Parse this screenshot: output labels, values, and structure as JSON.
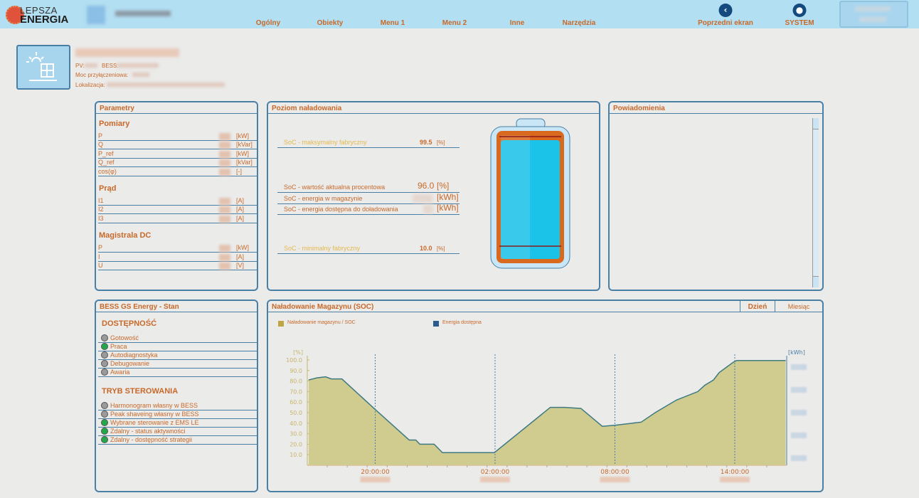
{
  "header": {
    "logo_top": "LEPSZA",
    "logo_bottom": "ENERGIA",
    "nav": [
      "Ogólny",
      "Obiekty",
      "Menu 1",
      "Menu 2",
      "Inne",
      "Narzędzia"
    ],
    "back_label": "Poprzedni ekran",
    "system_label": "SYSTEM",
    "back_icon": "chevron-left-circle",
    "system_icon": "user-circle"
  },
  "site": {
    "pv_label": "PV:",
    "bess_label": "BESS:",
    "power_label": "Moc przyłączeniowa:",
    "location_label": "Lokalizacja:"
  },
  "params": {
    "title": "Parametry",
    "pomiary": {
      "title": "Pomiary",
      "rows": [
        {
          "label": "P",
          "unit": "[kW]"
        },
        {
          "label": "Q",
          "unit": "[kVar]"
        },
        {
          "label": "P_ref",
          "unit": "[kW]"
        },
        {
          "label": "Q_ref",
          "unit": "[kVar]"
        },
        {
          "label": "cos(φ)",
          "unit": "[-]"
        }
      ]
    },
    "prad": {
      "title": "Prąd",
      "rows": [
        {
          "label": "I1",
          "unit": "[A]"
        },
        {
          "label": "I2",
          "unit": "[A]"
        },
        {
          "label": "I3",
          "unit": "[A]"
        }
      ]
    },
    "dc": {
      "title": "Magistrala DC",
      "rows": [
        {
          "label": "P",
          "unit": "[kW]"
        },
        {
          "label": "I",
          "unit": "[A]"
        },
        {
          "label": "U",
          "unit": "[V]"
        }
      ]
    }
  },
  "charge": {
    "title": "Poziom naładowania",
    "max_label": "SoC - maksymalny fabryczny",
    "max_value": "99.5",
    "max_unit": "[%]",
    "cur_label": "SoC - wartość aktualna procentowa",
    "cur_value": "96.0",
    "cur_unit": "[%]",
    "energy_label": "SoC - energia w magazynie",
    "energy_unit": "[kWh]",
    "avail_label": "SoC - energia dostępna do doładowania",
    "avail_unit": "[kWh]",
    "min_label": "SoC - minimalny fabryczny",
    "min_value": "10.0",
    "min_unit": "[%]",
    "battery_level_percent": 96.0
  },
  "notifications": {
    "title": "Powiadomienia"
  },
  "status": {
    "title": "BESS GS Energy - Stan",
    "availability": {
      "title": "DOSTĘPNOŚĆ",
      "items": [
        {
          "label": "Gotowość",
          "state": "off"
        },
        {
          "label": "Praca",
          "state": "on"
        },
        {
          "label": "Autodiagnostyka",
          "state": "off"
        },
        {
          "label": "Debugowanie",
          "state": "off"
        },
        {
          "label": "Awaria",
          "state": "off"
        }
      ]
    },
    "mode": {
      "title": "TRYB STEROWANIA",
      "items": [
        {
          "label": "Harmonogram własny w BESS",
          "state": "off"
        },
        {
          "label": "Peak shaveing własny w BESS",
          "state": "off"
        },
        {
          "label": "Wybrane sterowanie z EMS LE",
          "state": "on"
        },
        {
          "label": "Zdalny - status aktywności",
          "state": "on"
        },
        {
          "label": "Zdalny - dostępność strategii",
          "state": "on"
        }
      ]
    },
    "colors": {
      "on": "#22a84a",
      "off": "#9a9a9a"
    }
  },
  "soc_chart": {
    "title": "Naładowanie Magazynu (SOC)",
    "tab_day": "Dzień",
    "tab_month": "Miesiąc",
    "active_tab": "Dzień"
  },
  "chart_data": {
    "type": "area",
    "series": [
      {
        "name": "Naładowanie magazynu / SOC",
        "color": "#c0a640",
        "points": [
          [
            "16:40",
            81
          ],
          [
            "17:05",
            83
          ],
          [
            "17:31",
            84
          ],
          [
            "17:48",
            82
          ],
          [
            "18:20",
            82
          ],
          [
            "20:00",
            53
          ],
          [
            "21:42",
            24
          ],
          [
            "22:02",
            24
          ],
          [
            "22:14",
            20
          ],
          [
            "22:57",
            20
          ],
          [
            "23:22",
            12
          ],
          [
            "01:58",
            12
          ],
          [
            "04:46",
            55
          ],
          [
            "05:29",
            55
          ],
          [
            "06:18",
            54
          ],
          [
            "07:22",
            37
          ],
          [
            "08:00",
            38
          ],
          [
            "09:19",
            41
          ],
          [
            "10:01",
            50
          ],
          [
            "11:05",
            62
          ],
          [
            "12:09",
            70
          ],
          [
            "12:30",
            76
          ],
          [
            "12:56",
            81
          ],
          [
            "13:13",
            88
          ],
          [
            "13:56",
            98
          ],
          [
            "14:06",
            99.5
          ],
          [
            "16:33",
            99.5
          ]
        ]
      },
      {
        "name": "Energia dostępna",
        "color": "#2c5c8c",
        "points": []
      }
    ],
    "xlim": [
      "16:36",
      "16:36"
    ],
    "xticks": [
      "20:00:00",
      "02:00:00",
      "08:00:00",
      "14:00:00"
    ],
    "ylabel": "[%]",
    "y2label": "[kWh]",
    "ylim": [
      0,
      100
    ],
    "yticks": [
      "10.0",
      "20.0",
      "30.0",
      "40.0",
      "50.0",
      "60.0",
      "70.0",
      "80.0",
      "90.0",
      "100.0"
    ],
    "legend": "top-left",
    "grid": "vertical dashed at x ticks"
  }
}
